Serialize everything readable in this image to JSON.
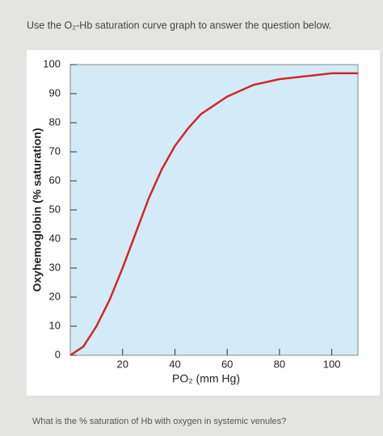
{
  "header": {
    "text": "Use the O₂-Hb saturation curve graph to answer the question below."
  },
  "question": {
    "text": "What is the % saturation of Hb with oxygen in systemic venules?"
  },
  "chart_data": {
    "type": "line",
    "ylabel": "Oxyhemoglobin (% saturation)",
    "xlabel": "PO₂ (mm Hg)",
    "x": [
      0,
      5,
      10,
      15,
      20,
      25,
      30,
      35,
      40,
      45,
      50,
      55,
      60,
      65,
      70,
      75,
      80,
      85,
      90,
      95,
      100,
      105,
      110
    ],
    "series": [
      {
        "color": "#d3262a",
        "values": [
          0,
          3,
          10,
          19,
          30,
          42,
          54,
          64,
          72,
          78,
          83,
          86,
          89,
          91,
          93,
          94,
          95,
          95.5,
          96,
          96.5,
          97,
          97,
          97
        ]
      }
    ],
    "xlim": [
      0,
      110
    ],
    "xticks": [
      20,
      40,
      60,
      80,
      100
    ],
    "ylim": [
      0,
      100
    ],
    "yticks": [
      0,
      10,
      20,
      30,
      40,
      50,
      60,
      70,
      80,
      90,
      100
    ],
    "plot_background": "#d3ebf6"
  }
}
